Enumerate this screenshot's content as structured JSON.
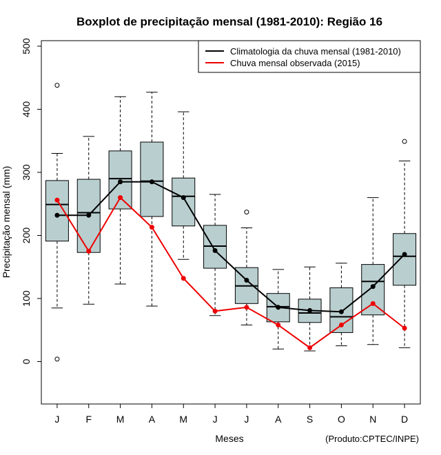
{
  "chart_data": {
    "type": "boxplot",
    "title": "Boxplot de precipitação mensal (1981-2010): Região 16",
    "xlabel": "Meses",
    "ylabel": "Precipitação mensal (mm)",
    "ylim": [
      -65,
      510
    ],
    "yticks": [
      0,
      100,
      200,
      300,
      400,
      500
    ],
    "categories": [
      "J",
      "F",
      "M",
      "A",
      "M",
      "J",
      "J",
      "A",
      "S",
      "O",
      "N",
      "D"
    ],
    "boxes": [
      {
        "min": 85,
        "q1": 191,
        "median": 249,
        "q3": 287,
        "max": 330,
        "outliers": [
          438,
          4
        ]
      },
      {
        "min": 91,
        "q1": 173,
        "median": 236,
        "q3": 289,
        "max": 357,
        "outliers": []
      },
      {
        "min": 123,
        "q1": 242,
        "median": 290,
        "q3": 334,
        "max": 420,
        "outliers": []
      },
      {
        "min": 88,
        "q1": 230,
        "median": 286,
        "q3": 348,
        "max": 427,
        "outliers": []
      },
      {
        "min": 162,
        "q1": 215,
        "median": 262,
        "q3": 291,
        "max": 396,
        "outliers": []
      },
      {
        "min": 73,
        "q1": 148,
        "median": 183,
        "q3": 216,
        "max": 265,
        "outliers": []
      },
      {
        "min": 58,
        "q1": 92,
        "median": 120,
        "q3": 149,
        "max": 212,
        "outliers": [
          237
        ]
      },
      {
        "min": 20,
        "q1": 63,
        "median": 87,
        "q3": 108,
        "max": 146,
        "outliers": []
      },
      {
        "min": 17,
        "q1": 62,
        "median": 77,
        "q3": 99,
        "max": 150,
        "outliers": []
      },
      {
        "min": 25,
        "q1": 46,
        "median": 71,
        "q3": 117,
        "max": 156,
        "outliers": []
      },
      {
        "min": 27,
        "q1": 74,
        "median": 127,
        "q3": 154,
        "max": 260,
        "outliers": []
      },
      {
        "min": 22,
        "q1": 121,
        "median": 167,
        "q3": 203,
        "max": 318,
        "outliers": [
          349
        ]
      }
    ],
    "series": [
      {
        "name": "Climatologia da chuva mensal (1981-2010)",
        "color": "#000000",
        "values": [
          232,
          232,
          285,
          285,
          260,
          176,
          129,
          86,
          81,
          79,
          119,
          170
        ]
      },
      {
        "name": "Chuva mensal observada (2015)",
        "color": "#ee0000",
        "values": [
          256,
          175,
          260,
          213,
          132,
          80,
          86,
          58,
          22,
          58,
          92,
          53
        ]
      }
    ],
    "box_fill": "#b9cecf",
    "credit": "(Produto:CPTEC/INPE)",
    "legend_position": "top-right"
  }
}
